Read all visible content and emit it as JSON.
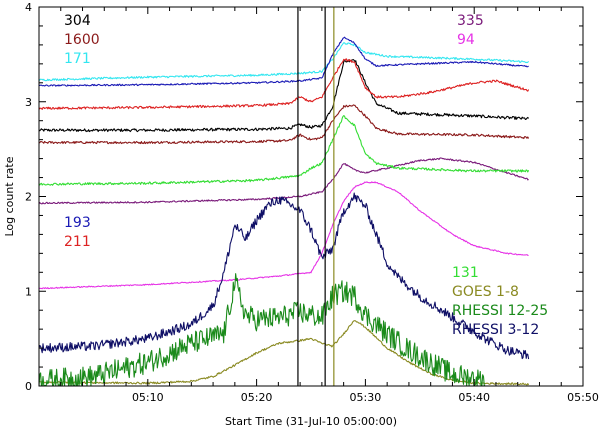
{
  "chart_data": {
    "type": "line",
    "xlabel": "Start Time (31-Jul-10 05:00:00)",
    "ylabel": "Log count rate",
    "xlim": [
      0,
      50
    ],
    "ylim": [
      0,
      4
    ],
    "x_ticks": [
      10,
      20,
      30,
      40,
      50
    ],
    "x_tick_labels": [
      "05:10",
      "05:20",
      "05:30",
      "05:40",
      "05:50"
    ],
    "y_ticks": [
      0,
      1,
      2,
      3,
      4
    ],
    "y_tick_labels": [
      "0",
      "1",
      "2",
      "3",
      "4"
    ],
    "grid": false,
    "vertical_lines": [
      {
        "x": 23.8,
        "color": "#000000"
      },
      {
        "x": 26.3,
        "color": "#000000"
      },
      {
        "x": 27.1,
        "color": "#8a8a22"
      }
    ],
    "series": [
      {
        "name": "304",
        "color": "#000000",
        "noise": 0.015,
        "points": [
          [
            0,
            2.7
          ],
          [
            10,
            2.7
          ],
          [
            20,
            2.71
          ],
          [
            23,
            2.72
          ],
          [
            24,
            2.76
          ],
          [
            25,
            2.73
          ],
          [
            26,
            2.75
          ],
          [
            27,
            2.95
          ],
          [
            28,
            3.42
          ],
          [
            29,
            3.45
          ],
          [
            30,
            3.2
          ],
          [
            31,
            2.98
          ],
          [
            33,
            2.88
          ],
          [
            40,
            2.85
          ],
          [
            45,
            2.82
          ]
        ]
      },
      {
        "name": "1600",
        "color": "#8b1a1a",
        "noise": 0.012,
        "points": [
          [
            0,
            2.57
          ],
          [
            10,
            2.57
          ],
          [
            20,
            2.58
          ],
          [
            23,
            2.59
          ],
          [
            24,
            2.65
          ],
          [
            25,
            2.6
          ],
          [
            26,
            2.62
          ],
          [
            27,
            2.8
          ],
          [
            28,
            2.95
          ],
          [
            29,
            2.96
          ],
          [
            30,
            2.85
          ],
          [
            31,
            2.72
          ],
          [
            33,
            2.66
          ],
          [
            40,
            2.65
          ],
          [
            45,
            2.62
          ]
        ]
      },
      {
        "name": "171",
        "color": "#33e6f0",
        "noise": 0.01,
        "points": [
          [
            0,
            3.23
          ],
          [
            10,
            3.26
          ],
          [
            20,
            3.28
          ],
          [
            24,
            3.3
          ],
          [
            26,
            3.32
          ],
          [
            27,
            3.45
          ],
          [
            28,
            3.62
          ],
          [
            29,
            3.6
          ],
          [
            30,
            3.52
          ],
          [
            32,
            3.48
          ],
          [
            40,
            3.45
          ],
          [
            45,
            3.42
          ]
        ]
      },
      {
        "name": "193",
        "color": "#1a1ab5",
        "noise": 0.008,
        "points": [
          [
            0,
            3.17
          ],
          [
            10,
            3.18
          ],
          [
            20,
            3.2
          ],
          [
            24,
            3.22
          ],
          [
            26,
            3.25
          ],
          [
            27,
            3.5
          ],
          [
            28,
            3.68
          ],
          [
            29,
            3.62
          ],
          [
            30,
            3.45
          ],
          [
            31,
            3.38
          ],
          [
            35,
            3.4
          ],
          [
            40,
            3.42
          ],
          [
            45,
            3.37
          ]
        ]
      },
      {
        "name": "211",
        "color": "#dd2222",
        "noise": 0.012,
        "points": [
          [
            0,
            2.93
          ],
          [
            10,
            2.94
          ],
          [
            20,
            2.96
          ],
          [
            23,
            2.98
          ],
          [
            24,
            3.05
          ],
          [
            25,
            3.0
          ],
          [
            26,
            3.05
          ],
          [
            27,
            3.25
          ],
          [
            28,
            3.45
          ],
          [
            29,
            3.42
          ],
          [
            30,
            3.15
          ],
          [
            31,
            3.05
          ],
          [
            33,
            3.05
          ],
          [
            36,
            3.1
          ],
          [
            40,
            3.2
          ],
          [
            42,
            3.22
          ],
          [
            45,
            3.12
          ]
        ]
      },
      {
        "name": "335",
        "color": "#7a1a7a",
        "noise": 0.008,
        "points": [
          [
            0,
            1.93
          ],
          [
            10,
            1.94
          ],
          [
            20,
            1.97
          ],
          [
            24,
            2.0
          ],
          [
            26,
            2.05
          ],
          [
            27,
            2.18
          ],
          [
            28,
            2.35
          ],
          [
            29,
            2.28
          ],
          [
            30,
            2.25
          ],
          [
            32,
            2.3
          ],
          [
            35,
            2.38
          ],
          [
            37,
            2.4
          ],
          [
            40,
            2.36
          ],
          [
            43,
            2.25
          ],
          [
            45,
            2.18
          ]
        ]
      },
      {
        "name": "94",
        "color": "#e633e6",
        "noise": 0.006,
        "points": [
          [
            0,
            1.03
          ],
          [
            10,
            1.07
          ],
          [
            18,
            1.12
          ],
          [
            22,
            1.16
          ],
          [
            25,
            1.2
          ],
          [
            26,
            1.4
          ],
          [
            27,
            1.7
          ],
          [
            28,
            1.95
          ],
          [
            29,
            2.1
          ],
          [
            30,
            2.15
          ],
          [
            31,
            2.15
          ],
          [
            33,
            2.05
          ],
          [
            35,
            1.85
          ],
          [
            38,
            1.6
          ],
          [
            40,
            1.48
          ],
          [
            43,
            1.4
          ],
          [
            45,
            1.38
          ]
        ]
      },
      {
        "name": "131",
        "color": "#33dd33",
        "noise": 0.012,
        "points": [
          [
            0,
            2.13
          ],
          [
            10,
            2.14
          ],
          [
            20,
            2.17
          ],
          [
            24,
            2.22
          ],
          [
            25,
            2.3
          ],
          [
            26,
            2.35
          ],
          [
            27,
            2.6
          ],
          [
            28,
            2.85
          ],
          [
            29,
            2.75
          ],
          [
            30,
            2.45
          ],
          [
            31,
            2.35
          ],
          [
            33,
            2.3
          ],
          [
            40,
            2.27
          ],
          [
            45,
            2.27
          ]
        ]
      },
      {
        "name": "GOES 1-8",
        "color": "#8a8a22",
        "noise": 0.01,
        "points": [
          [
            0,
            0.04
          ],
          [
            10,
            0.03
          ],
          [
            14,
            0.05
          ],
          [
            16,
            0.1
          ],
          [
            18,
            0.22
          ],
          [
            20,
            0.35
          ],
          [
            22,
            0.45
          ],
          [
            24,
            0.48
          ],
          [
            25,
            0.5
          ],
          [
            26,
            0.45
          ],
          [
            27,
            0.42
          ],
          [
            28,
            0.55
          ],
          [
            29,
            0.7
          ],
          [
            30,
            0.62
          ],
          [
            32,
            0.4
          ],
          [
            34,
            0.25
          ],
          [
            36,
            0.13
          ],
          [
            38,
            0.06
          ],
          [
            40,
            0.03
          ],
          [
            45,
            0.02
          ]
        ]
      },
      {
        "name": "RHESSI 12-25",
        "color": "#1a8a1a",
        "noise": 0.12,
        "points": [
          [
            0,
            0.05
          ],
          [
            5,
            0.1
          ],
          [
            10,
            0.25
          ],
          [
            14,
            0.45
          ],
          [
            17,
            0.55
          ],
          [
            18,
            1.1
          ],
          [
            19,
            0.75
          ],
          [
            20,
            0.7
          ],
          [
            22,
            0.72
          ],
          [
            24,
            0.78
          ],
          [
            26,
            0.72
          ],
          [
            27,
            0.95
          ],
          [
            28,
            1.0
          ],
          [
            29,
            0.95
          ],
          [
            30,
            0.75
          ],
          [
            32,
            0.55
          ],
          [
            34,
            0.38
          ],
          [
            36,
            0.25
          ],
          [
            38,
            0.12
          ],
          [
            40,
            0.08
          ],
          [
            41,
            0.05
          ]
        ]
      },
      {
        "name": "RHESSI 3-12",
        "color": "#0f0f66",
        "noise": 0.05,
        "points": [
          [
            0,
            0.4
          ],
          [
            5,
            0.42
          ],
          [
            10,
            0.5
          ],
          [
            14,
            0.65
          ],
          [
            16,
            0.85
          ],
          [
            17,
            1.2
          ],
          [
            18,
            1.7
          ],
          [
            19,
            1.55
          ],
          [
            20,
            1.75
          ],
          [
            21,
            1.9
          ],
          [
            22,
            1.97
          ],
          [
            23,
            1.92
          ],
          [
            24,
            1.85
          ],
          [
            25,
            1.65
          ],
          [
            26,
            1.35
          ],
          [
            27,
            1.45
          ],
          [
            28,
            1.85
          ],
          [
            29,
            2.0
          ],
          [
            30,
            1.9
          ],
          [
            31,
            1.6
          ],
          [
            32,
            1.3
          ],
          [
            33,
            1.15
          ],
          [
            35,
            0.95
          ],
          [
            37,
            0.8
          ],
          [
            39,
            0.65
          ],
          [
            41,
            0.5
          ],
          [
            43,
            0.38
          ],
          [
            45,
            0.32
          ]
        ]
      }
    ],
    "legend_groups": [
      {
        "placement": "top-left",
        "entries": [
          "304",
          "1600",
          "171"
        ]
      },
      {
        "placement": "top-right",
        "entries": [
          "335",
          "94"
        ]
      },
      {
        "placement": "middle-left",
        "entries": [
          "193",
          "211"
        ]
      },
      {
        "placement": "bottom-right",
        "entries": [
          "131",
          "GOES 1-8",
          "RHESSI 12-25",
          "RHESSI 3-12"
        ]
      }
    ]
  }
}
